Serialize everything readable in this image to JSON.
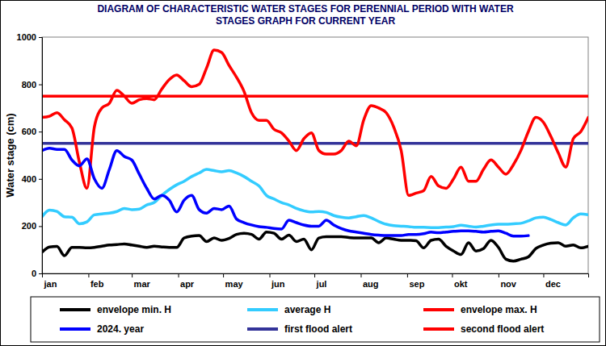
{
  "chart_data": {
    "type": "line",
    "title": [
      "DIAGRAM OF CHARACTERISTIC  WATER STAGES FOR PERENNIAL PERIOD WITH WATER",
      "STAGES GRAPH FOR CURRENT  YEAR"
    ],
    "y_label": "Water stage (cm)",
    "x": [
      0,
      5,
      10,
      15,
      20,
      25,
      30,
      35,
      40,
      45,
      50,
      55,
      60,
      65,
      70,
      75,
      80,
      85,
      90,
      95,
      100,
      105,
      110,
      115,
      120,
      125,
      130,
      135,
      140,
      145,
      150,
      155,
      160,
      165,
      170,
      175,
      180,
      185,
      190,
      195,
      200,
      205,
      210,
      215,
      220,
      225,
      230,
      235,
      240,
      245,
      250,
      255,
      260,
      265,
      270,
      275,
      280,
      285,
      290,
      295,
      300,
      305,
      310,
      315,
      320,
      325,
      330,
      335,
      340,
      345,
      350,
      355,
      360,
      365
    ],
    "xlim": [
      0,
      365
    ],
    "xticks": [
      {
        "value": 0,
        "label": "jan"
      },
      {
        "value": 31,
        "label": "feb"
      },
      {
        "value": 60,
        "label": "mar"
      },
      {
        "value": 91,
        "label": "apr"
      },
      {
        "value": 121,
        "label": "may"
      },
      {
        "value": 152,
        "label": "jun"
      },
      {
        "value": 182,
        "label": "jul"
      },
      {
        "value": 213,
        "label": "aug"
      },
      {
        "value": 244,
        "label": "sep"
      },
      {
        "value": 274,
        "label": "okt"
      },
      {
        "value": 305,
        "label": "nov"
      },
      {
        "value": 335,
        "label": "dec"
      }
    ],
    "ylim": [
      0,
      1000
    ],
    "yticks": [
      0,
      200,
      400,
      600,
      800,
      1000
    ],
    "grid": false,
    "legend": "bottom",
    "series": [
      {
        "name": "envelope min. H",
        "color": "#000000",
        "line_style": "solid",
        "values": [
          90,
          112,
          114,
          75,
          110,
          110,
          108,
          110,
          115,
          120,
          122,
          125,
          120,
          115,
          110,
          115,
          112,
          110,
          110,
          150,
          158,
          160,
          135,
          150,
          140,
          148,
          165,
          170,
          165,
          145,
          175,
          170,
          145,
          162,
          135,
          145,
          100,
          150,
          155,
          155,
          155,
          152,
          150,
          150,
          150,
          130,
          150,
          145,
          140,
          140,
          138,
          108,
          140,
          145,
          115,
          95,
          80,
          130,
          95,
          105,
          140,
          110,
          60,
          52,
          60,
          70,
          105,
          120,
          128,
          130,
          115,
          120,
          108,
          115
        ]
      },
      {
        "name": "average H",
        "color": "#33CCFF",
        "line_style": "solid",
        "values": [
          240,
          268,
          262,
          240,
          238,
          210,
          218,
          248,
          252,
          255,
          262,
          275,
          270,
          272,
          290,
          300,
          330,
          355,
          375,
          390,
          410,
          425,
          440,
          435,
          430,
          435,
          425,
          410,
          390,
          370,
          330,
          315,
          300,
          290,
          275,
          265,
          260,
          262,
          258,
          245,
          238,
          235,
          240,
          245,
          235,
          220,
          208,
          202,
          200,
          198,
          195,
          195,
          194,
          194,
          196,
          198,
          204,
          200,
          196,
          200,
          205,
          208,
          208,
          210,
          212,
          222,
          235,
          238,
          228,
          215,
          205,
          235,
          252,
          248
        ]
      },
      {
        "name": "envelope max. H",
        "color": "#FF0000",
        "line_style": "solid",
        "values": [
          660,
          665,
          680,
          650,
          615,
          470,
          360,
          620,
          700,
          720,
          775,
          750,
          720,
          735,
          740,
          735,
          780,
          820,
          840,
          815,
          790,
          800,
          870,
          945,
          935,
          880,
          830,
          770,
          680,
          648,
          648,
          610,
          595,
          560,
          520,
          570,
          595,
          520,
          505,
          505,
          520,
          560,
          540,
          650,
          710,
          700,
          680,
          620,
          520,
          330,
          340,
          350,
          410,
          370,
          360,
          400,
          450,
          390,
          390,
          440,
          480,
          450,
          420,
          460,
          520,
          600,
          660,
          640,
          580,
          510,
          450,
          570,
          600,
          660
        ]
      },
      {
        "name": "2024. year",
        "color": "#0000FF",
        "line_style": "solid",
        "values": [
          520,
          530,
          525,
          525,
          480,
          455,
          485,
          400,
          360,
          440,
          520,
          495,
          480,
          420,
          360,
          315,
          330,
          310,
          260,
          310,
          330,
          270,
          255,
          275,
          270,
          285,
          230,
          215,
          205,
          198,
          195,
          190,
          188,
          225,
          215,
          205,
          200,
          200,
          225,
          205,
          190,
          180,
          175,
          170,
          165,
          162,
          160,
          160,
          160,
          165,
          165,
          168,
          175,
          172,
          175,
          178,
          180,
          180,
          178,
          175,
          178,
          180,
          170,
          158,
          158,
          160,
          null,
          null,
          null,
          null,
          null,
          null,
          null,
          null
        ]
      }
    ],
    "hlines": [
      {
        "name": "first flood alert",
        "color": "#333399",
        "line_style": "solid",
        "value": 550
      },
      {
        "name": "second flood alert",
        "color": "#FF0000",
        "line_style": "solid",
        "value": 750
      }
    ]
  }
}
